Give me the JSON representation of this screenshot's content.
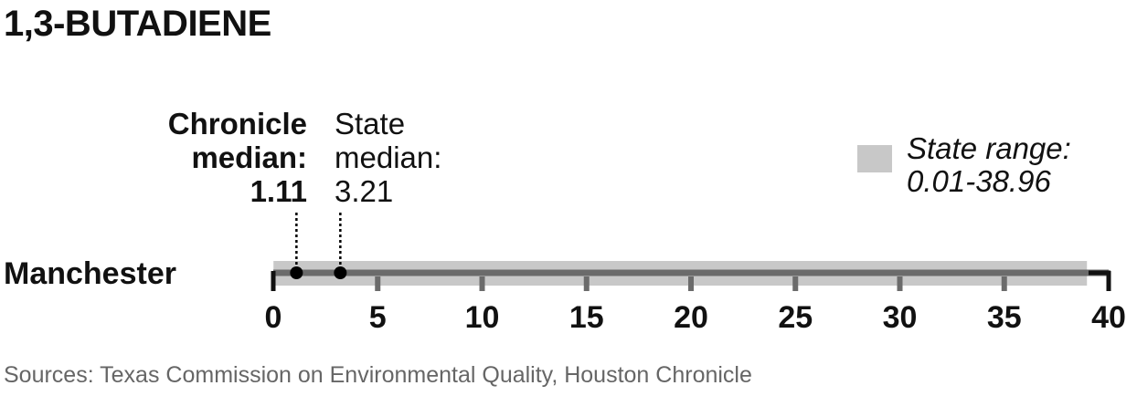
{
  "chart_data": {
    "type": "range-dot",
    "title": "1,3-BUTADIENE",
    "row_label": "Manchester",
    "x_ticks": [
      0,
      5,
      10,
      15,
      20,
      25,
      30,
      35,
      40
    ],
    "xlim": [
      0,
      40
    ],
    "state_range": [
      0.01,
      38.96
    ],
    "chronicle_median": 1.11,
    "state_median": 3.21,
    "annotations": {
      "chronicle_line1": "Chronicle",
      "chronicle_line2": "median:",
      "chronicle_line3": "1.11",
      "state_line1": "State",
      "state_line2": "median:",
      "state_line3": "3.21"
    },
    "legend": {
      "line1": "State range:",
      "line2": "0.01-38.96"
    },
    "colors": {
      "range_fill": "#c8c8c8",
      "axis_line": "#6b6b6b",
      "ticks": "#111111",
      "dots": "#000000"
    }
  },
  "source": "Sources: Texas Commission on Environmental Quality, Houston Chronicle"
}
